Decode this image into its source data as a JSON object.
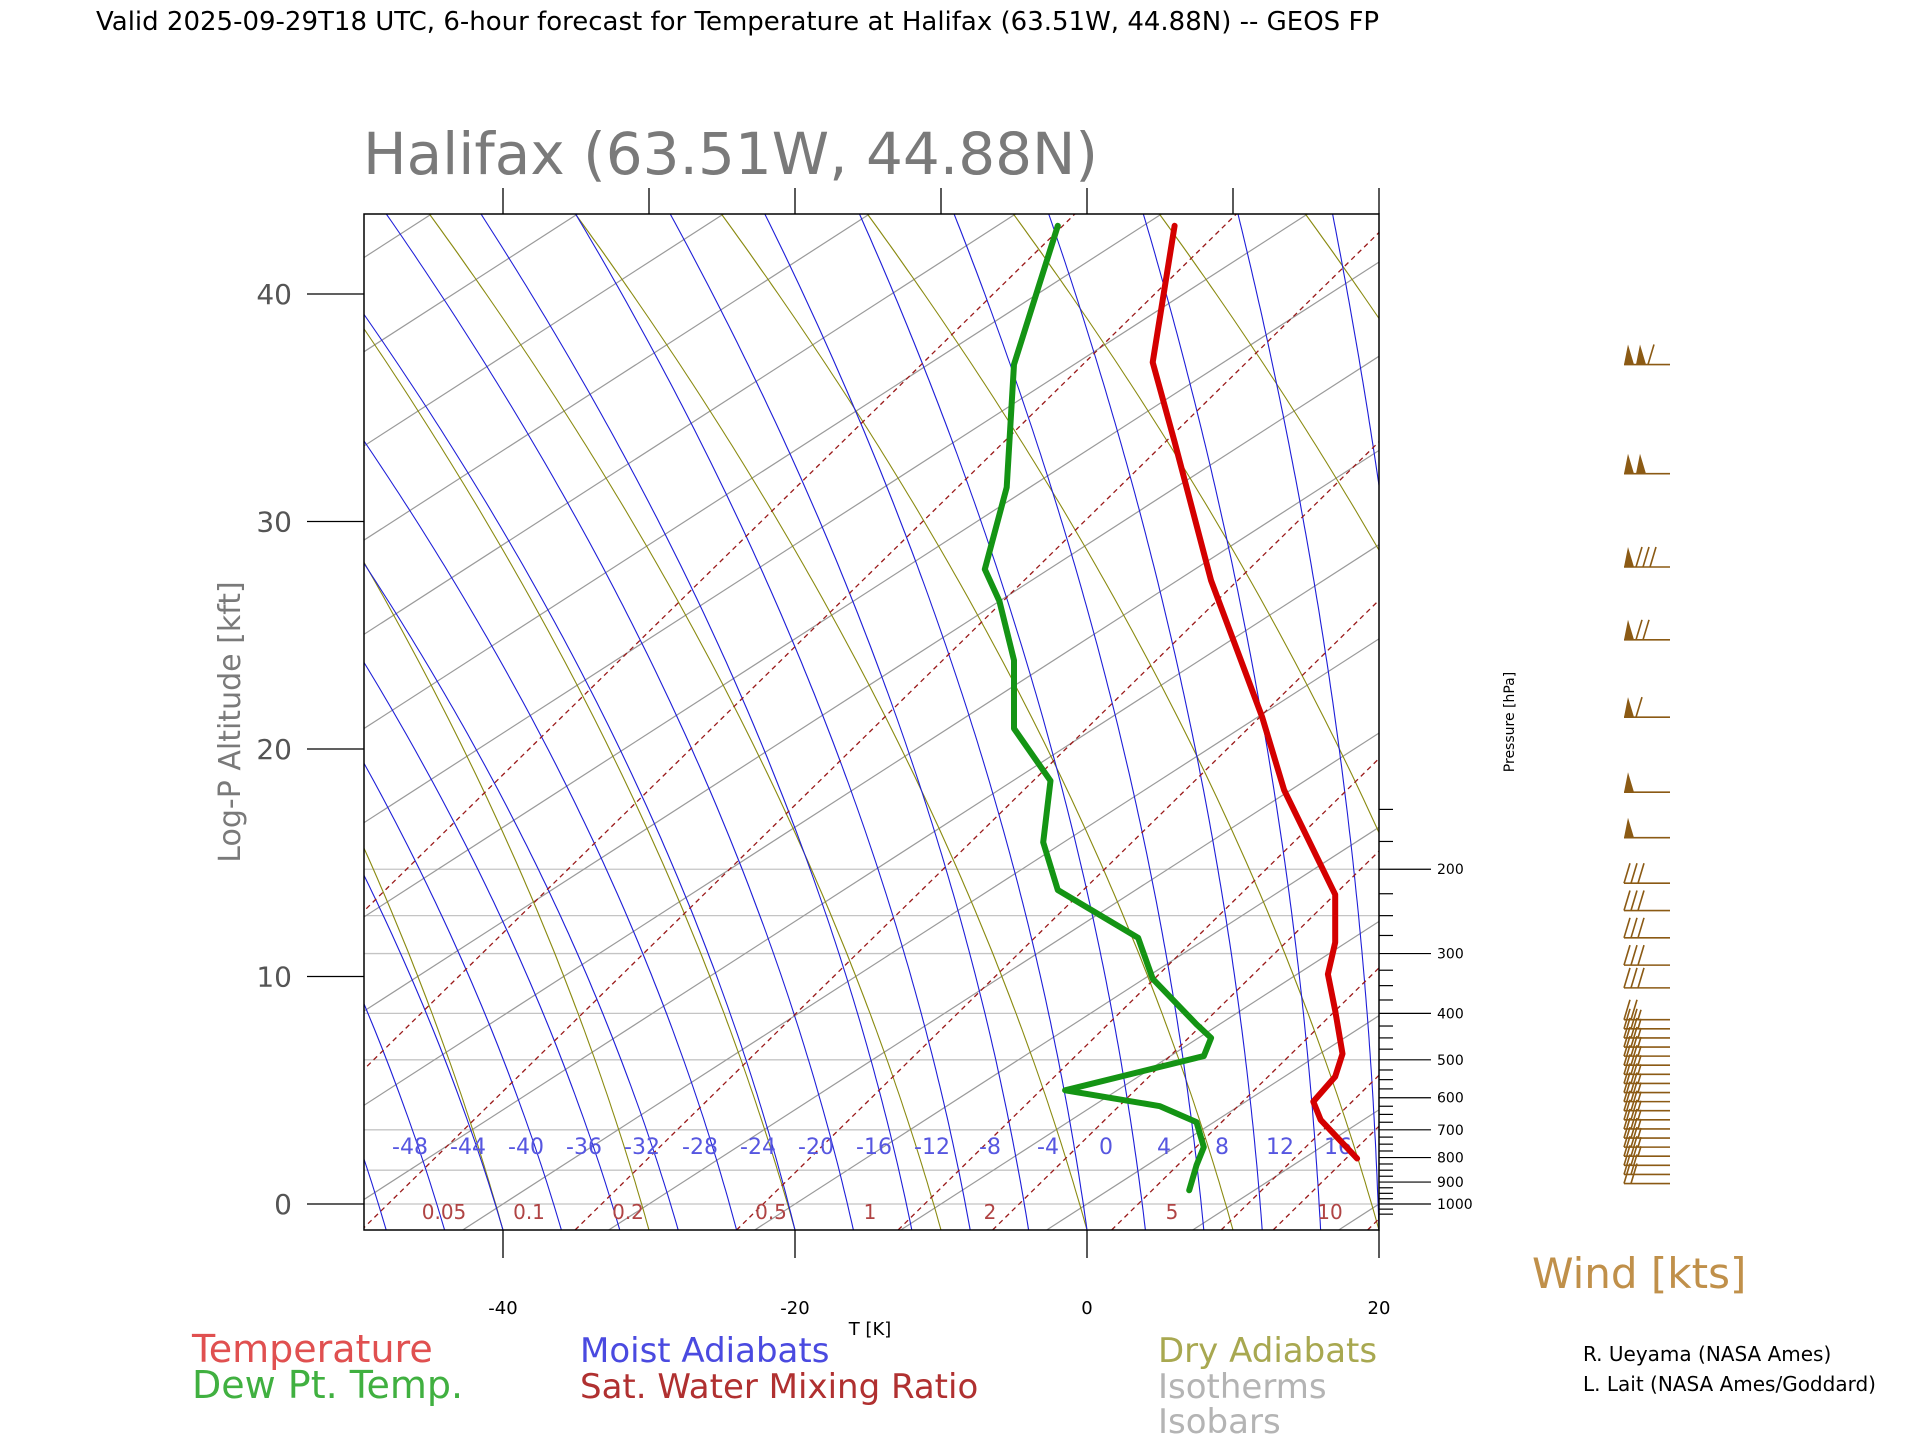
{
  "page_title": "Valid 2025-09-29T18 UTC, 6-hour forecast for Temperature at Halifax (63.51W, 44.88N) -- GEOS FP",
  "plot_title": "Halifax (63.51W, 44.88N)",
  "colors": {
    "temperature": "#d40000",
    "dewpoint": "#149414",
    "moist_adiabat": "#1e1ed8",
    "mixing_ratio": "#9a1a1a",
    "dry_adiabat": "#8a8a10",
    "isotherm": "#9a9a9a",
    "isobar": "#c4c4c4",
    "wind": "#8b5a14",
    "moist_label": "#5656e0",
    "mixing_label": "#b04444",
    "legend_temperature": "#e05050",
    "legend_dewpoint": "#40b040",
    "legend_moist": "#4a4ae0",
    "legend_mixing": "#b03030",
    "legend_dry": "#a8a850",
    "legend_gray": "#b4b4b4"
  },
  "legend": {
    "temperature": "Temperature",
    "dewpoint": "Dew Pt. Temp.",
    "moist": "Moist Adiabats",
    "mixing": "Sat. Water Mixing Ratio",
    "dry": "Dry Adiabats",
    "isotherms": "Isotherms",
    "isobars": "Isobars"
  },
  "wind_label": "Wind [kts]",
  "credits": [
    "R. Ueyama (NASA Ames)",
    "L. Lait (NASA Ames/Goddard)"
  ],
  "chart_data": {
    "type": "line",
    "title": "Halifax (63.51W, 44.88N)",
    "xlabel": "T [K]",
    "ylabel": "Log-P Altitude [kft]",
    "y2label": "Pressure [hPa]",
    "xlim": [
      -50,
      20
    ],
    "ylim": [
      -1.1,
      43.5
    ],
    "x_ticks": [
      "-40",
      "-20",
      "0",
      "20"
    ],
    "y_ticks": [
      "0",
      "10",
      "20",
      "30",
      "40"
    ],
    "pressure_ticks": [
      "200",
      "300",
      "400",
      "500",
      "600",
      "700",
      "800",
      "900",
      "1000"
    ],
    "moist_adiabat_labels": [
      "-48",
      "-44",
      "-40",
      "-36",
      "-32",
      "-28",
      "-24",
      "-20",
      "-16",
      "-12",
      "-8",
      "-4",
      "0",
      "4",
      "8",
      "12",
      "16"
    ],
    "mixing_ratio_labels": [
      "0.05",
      "0.1",
      "0.2",
      "0.5",
      "1",
      "2",
      "5",
      "10"
    ],
    "series": [
      {
        "name": "Temperature",
        "points": [
          [
            18.5,
            2.0
          ],
          [
            16.0,
            3.7
          ],
          [
            15.5,
            4.5
          ],
          [
            17.0,
            5.6
          ],
          [
            17.5,
            6.6
          ],
          [
            17.0,
            8.5
          ],
          [
            16.5,
            10.1
          ],
          [
            17.0,
            11.5
          ],
          [
            17.0,
            13.6
          ],
          [
            13.5,
            18.2
          ],
          [
            12.0,
            21.4
          ],
          [
            8.5,
            27.4
          ],
          [
            6.0,
            33.5
          ],
          [
            4.5,
            37.0
          ],
          [
            6.0,
            43.0
          ]
        ]
      },
      {
        "name": "Dew Pt. Temp.",
        "points": [
          [
            7.0,
            0.6
          ],
          [
            7.5,
            1.7
          ],
          [
            8.0,
            2.5
          ],
          [
            7.5,
            3.6
          ],
          [
            5.0,
            4.3
          ],
          [
            -1.5,
            5.0
          ],
          [
            8.0,
            6.5
          ],
          [
            8.5,
            7.3
          ],
          [
            7.5,
            7.9
          ],
          [
            4.5,
            9.9
          ],
          [
            3.5,
            11.7
          ],
          [
            -2.0,
            13.8
          ],
          [
            -3.0,
            15.9
          ],
          [
            -2.5,
            18.6
          ],
          [
            -5.0,
            20.9
          ],
          [
            -5.0,
            23.9
          ],
          [
            -6.0,
            26.5
          ],
          [
            -7.0,
            27.9
          ],
          [
            -5.5,
            31.5
          ],
          [
            -5.0,
            36.9
          ],
          [
            -2.0,
            43.0
          ]
        ]
      }
    ],
    "wind_barbs": [
      {
        "alt": 0.9,
        "full": 2,
        "half": 0,
        "flags": 0
      },
      {
        "alt": 1.3,
        "full": 2,
        "half": 0,
        "flags": 0
      },
      {
        "alt": 1.7,
        "full": 2,
        "half": 0,
        "flags": 0
      },
      {
        "alt": 2.1,
        "full": 2,
        "half": 1,
        "flags": 0
      },
      {
        "alt": 2.5,
        "full": 2,
        "half": 1,
        "flags": 0
      },
      {
        "alt": 2.9,
        "full": 2,
        "half": 1,
        "flags": 0
      },
      {
        "alt": 3.3,
        "full": 2,
        "half": 1,
        "flags": 0
      },
      {
        "alt": 3.7,
        "full": 2,
        "half": 1,
        "flags": 0
      },
      {
        "alt": 4.1,
        "full": 2,
        "half": 1,
        "flags": 0
      },
      {
        "alt": 4.5,
        "full": 2,
        "half": 1,
        "flags": 0
      },
      {
        "alt": 4.9,
        "full": 2,
        "half": 1,
        "flags": 0
      },
      {
        "alt": 5.3,
        "full": 2,
        "half": 1,
        "flags": 0
      },
      {
        "alt": 5.7,
        "full": 2,
        "half": 1,
        "flags": 0
      },
      {
        "alt": 6.1,
        "full": 2,
        "half": 1,
        "flags": 0
      },
      {
        "alt": 6.5,
        "full": 2,
        "half": 1,
        "flags": 0
      },
      {
        "alt": 6.9,
        "full": 2,
        "half": 1,
        "flags": 0
      },
      {
        "alt": 7.3,
        "full": 2,
        "half": 1,
        "flags": 0
      },
      {
        "alt": 7.7,
        "full": 2,
        "half": 1,
        "flags": 0
      },
      {
        "alt": 8.1,
        "full": 2,
        "half": 1,
        "flags": 0
      },
      {
        "alt": 9.5,
        "full": 3,
        "half": 0,
        "flags": 0
      },
      {
        "alt": 10.5,
        "full": 3,
        "half": 0,
        "flags": 0
      },
      {
        "alt": 11.7,
        "full": 3,
        "half": 0,
        "flags": 0
      },
      {
        "alt": 12.9,
        "full": 3,
        "half": 0,
        "flags": 0
      },
      {
        "alt": 14.1,
        "full": 3,
        "half": 0,
        "flags": 0
      },
      {
        "alt": 16.1,
        "full": 0,
        "half": 0,
        "flags": 1
      },
      {
        "alt": 18.1,
        "full": 0,
        "half": 0,
        "flags": 1
      },
      {
        "alt": 21.4,
        "full": 1,
        "half": 0,
        "flags": 1
      },
      {
        "alt": 24.8,
        "full": 2,
        "half": 0,
        "flags": 1
      },
      {
        "alt": 28.0,
        "full": 3,
        "half": 0,
        "flags": 1
      },
      {
        "alt": 32.1,
        "full": 0,
        "half": 0,
        "flags": 2
      },
      {
        "alt": 36.9,
        "full": 1,
        "half": 0,
        "flags": 2
      }
    ],
    "grid": true,
    "legend_position": "bottom"
  }
}
